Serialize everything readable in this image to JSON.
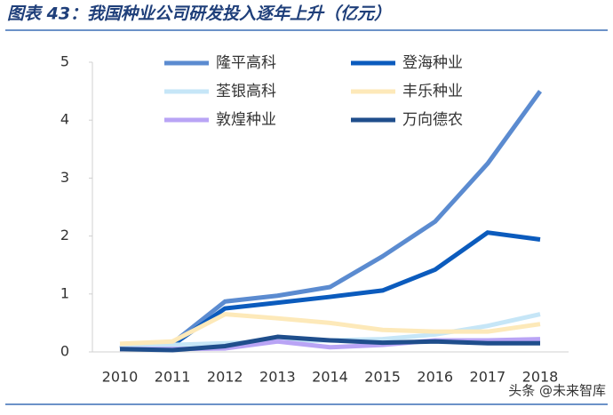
{
  "chart_data": {
    "type": "line",
    "title": "图表 43：我国种业公司研发投入逐年上升（亿元）",
    "categories": [
      "2010",
      "2011",
      "2012",
      "2013",
      "2014",
      "2015",
      "2016",
      "2017",
      "2018"
    ],
    "series": [
      {
        "name": "隆平高科",
        "color": "#5b8bd0",
        "values": [
          0.07,
          0.15,
          0.87,
          0.97,
          1.12,
          1.65,
          2.25,
          3.25,
          4.5
        ]
      },
      {
        "name": "登海种业",
        "color": "#0b5bbd",
        "values": [
          0.05,
          0.12,
          0.75,
          0.85,
          0.95,
          1.06,
          1.42,
          2.06,
          1.94
        ]
      },
      {
        "name": "荃银高科",
        "color": "#c6e6f7",
        "values": [
          0.1,
          0.12,
          0.15,
          0.18,
          0.2,
          0.22,
          0.3,
          0.45,
          0.65
        ]
      },
      {
        "name": "丰乐种业",
        "color": "#fde9b9",
        "values": [
          0.14,
          0.18,
          0.65,
          0.58,
          0.5,
          0.38,
          0.35,
          0.35,
          0.48
        ]
      },
      {
        "name": "敦煌种业",
        "color": "#b9a4f5",
        "values": [
          0.05,
          0.05,
          0.06,
          0.18,
          0.08,
          0.12,
          0.2,
          0.2,
          0.22
        ]
      },
      {
        "name": "万向德农",
        "color": "#1f4e8c",
        "values": [
          0.05,
          0.03,
          0.1,
          0.26,
          0.2,
          0.16,
          0.18,
          0.15,
          0.15
        ]
      }
    ],
    "ylim": [
      0,
      5
    ],
    "yticks": [
      0,
      1,
      2,
      3,
      4,
      5
    ],
    "grid": false,
    "legend": "top"
  },
  "watermark": "头条 @未来智库"
}
